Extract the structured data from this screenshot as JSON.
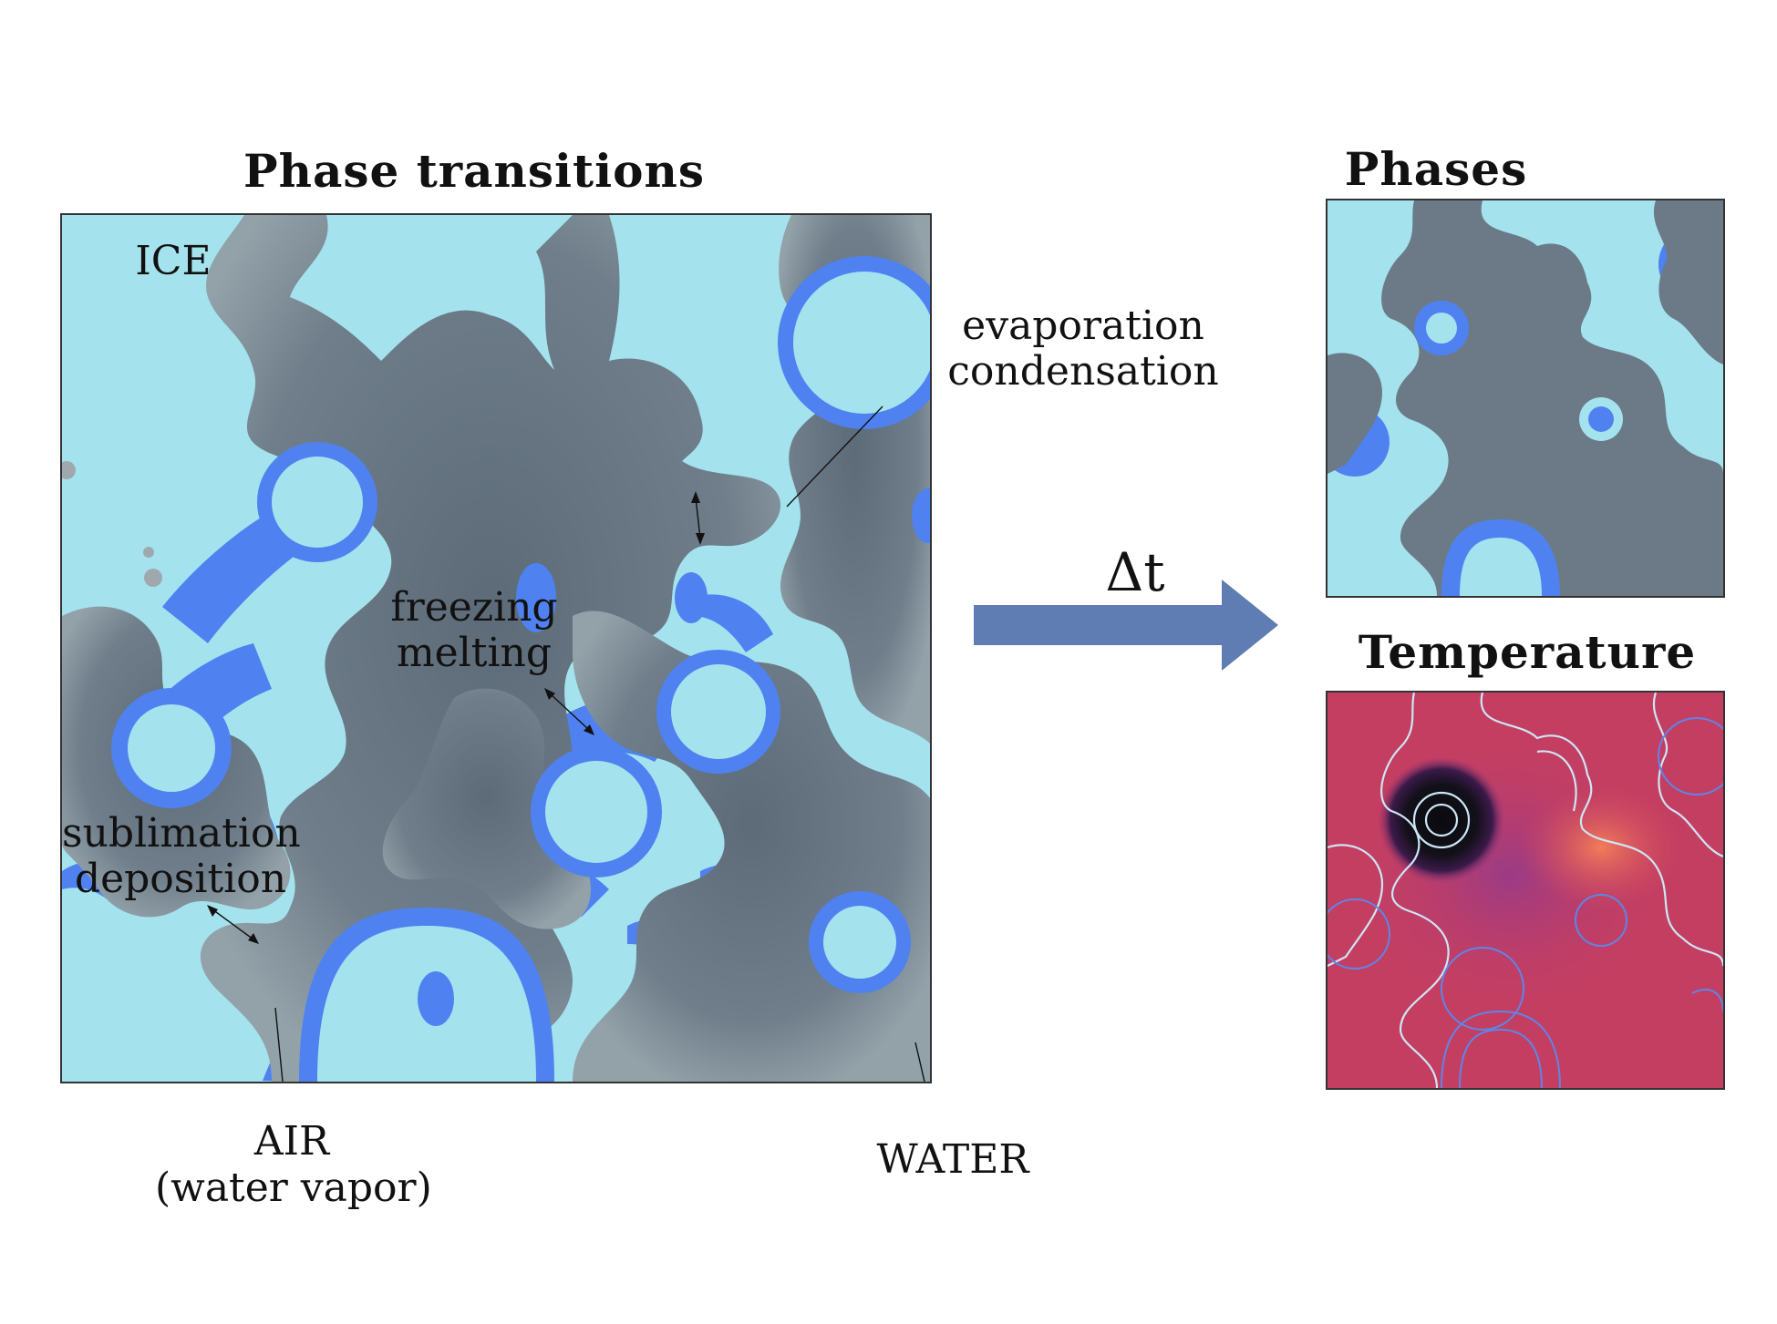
{
  "titles": {
    "main": "Phase transitions",
    "phases": "Phases",
    "temperature": "Temperature"
  },
  "labels": {
    "ice": "ICE",
    "evap_1": "evaporation",
    "evap_2": "condensation",
    "freeze_1": "freezing",
    "freeze_2": "melting",
    "sub_1": "sublimation",
    "sub_2": "deposition",
    "air_1": "AIR",
    "air_2": "(water vapor)",
    "water": "WATER",
    "time_step": "Δt"
  },
  "colors": {
    "ice": "#a4e3ee",
    "water": "#4f82f0",
    "air": "#6b7a86",
    "arrow": "#5f7db3",
    "temp_base": "#c43e62",
    "temp_contour": "#cde6f5"
  }
}
